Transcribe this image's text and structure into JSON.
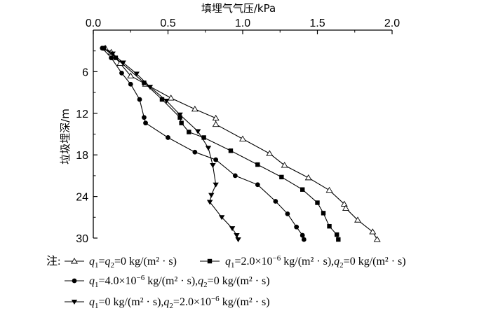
{
  "chart_data": {
    "type": "line",
    "xlabel": "填埋气气压/kPa",
    "ylabel": "垃圾埋深/m",
    "x_axis_position": "top",
    "y_axis_inverted": true,
    "xlim": [
      0,
      2.0
    ],
    "ylim": [
      0,
      30
    ],
    "x_ticks": [
      "0.0",
      "0.5",
      "1.0",
      "1.5",
      "2.0"
    ],
    "y_ticks": [
      "6",
      "12",
      "18",
      "24",
      "30"
    ],
    "grid": false,
    "legend_position": "bottom",
    "legend_prefix": "注:",
    "series": [
      {
        "legend": {
          "q1": "q",
          "q1_sub": "1",
          "eq1": "=",
          "q2": "q",
          "q2_sub": "2",
          "rest": "=0 kg/(m² · s)"
        },
        "marker": "triangle-open",
        "x": [
          0.08,
          0.12,
          0.18,
          0.25,
          0.35,
          0.52,
          0.68,
          0.82,
          0.82,
          1.0,
          1.18,
          1.28,
          1.44,
          1.58,
          1.68,
          1.69,
          1.77,
          1.87,
          1.9
        ],
        "y": [
          2.6,
          3.2,
          4.8,
          6.6,
          7.8,
          9.8,
          11.4,
          12.7,
          13.6,
          15.7,
          17.8,
          19.5,
          21.3,
          23.1,
          25.1,
          25.7,
          27.4,
          29.1,
          30.2
        ]
      },
      {
        "legend": {
          "q1": "q",
          "q1_sub": "1",
          "eq1": "=2.0×10",
          "exp1": "−6",
          "mid": " kg/(m² · s),",
          "q2": "q",
          "q2_sub": "2",
          "rest": "=0 kg/(m² · s)"
        },
        "marker": "square-filled",
        "x": [
          0.07,
          0.15,
          0.34,
          0.46,
          0.58,
          0.59,
          0.64,
          0.74,
          0.92,
          1.1,
          1.26,
          1.4,
          1.5,
          1.54,
          1.58,
          1.63,
          1.64
        ],
        "y": [
          2.6,
          4.0,
          7.6,
          10.0,
          12.6,
          13.4,
          14.7,
          15.5,
          17.4,
          19.4,
          21.2,
          23.0,
          24.9,
          26.4,
          28.3,
          29.5,
          30.2
        ]
      },
      {
        "legend": {
          "q1": "q",
          "q1_sub": "1",
          "eq1": "=4.0×10",
          "exp1": "−6",
          "mid": " kg/(m² · s),",
          "q2": "q",
          "q2_sub": "2",
          "rest": "=0 kg/(m² · s)"
        },
        "marker": "circle-filled",
        "x": [
          0.06,
          0.12,
          0.19,
          0.25,
          0.31,
          0.34,
          0.35,
          0.5,
          0.68,
          0.82,
          0.95,
          1.1,
          1.22,
          1.3,
          1.36,
          1.4,
          1.41
        ],
        "y": [
          2.6,
          4.0,
          6.2,
          7.8,
          10.0,
          12.6,
          13.4,
          15.5,
          17.6,
          18.7,
          21.0,
          22.3,
          24.7,
          26.5,
          28.4,
          29.6,
          30.2
        ]
      },
      {
        "legend": {
          "q1": "q",
          "q1_sub": "1",
          "eq1": "=0 kg/(m² · s),",
          "q2": "q",
          "q2_sub": "2",
          "rest": "=2.0×10",
          "exp2": "−6",
          "rest2": " kg/(m² · s)"
        },
        "marker": "triangle-down-filled",
        "x": [
          0.07,
          0.13,
          0.2,
          0.29,
          0.38,
          0.49,
          0.58,
          0.7,
          0.77,
          0.8,
          0.82,
          0.79,
          0.78,
          0.86,
          0.93,
          0.96,
          0.97
        ],
        "y": [
          2.6,
          3.4,
          4.7,
          6.3,
          8.2,
          10.2,
          12.2,
          14.6,
          17.0,
          19.5,
          22.3,
          23.8,
          24.8,
          27.0,
          28.6,
          29.6,
          30.2
        ]
      }
    ]
  }
}
